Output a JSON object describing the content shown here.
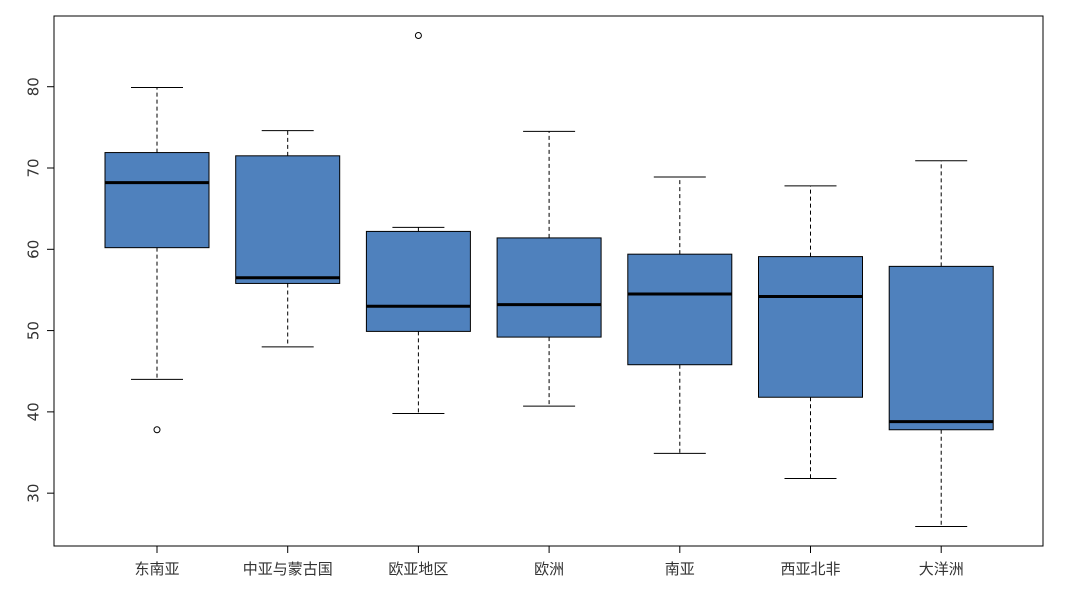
{
  "chart_data": {
    "type": "boxplot",
    "title": "",
    "xlabel": "",
    "ylabel": "",
    "ylim": [
      23.5,
      88.7
    ],
    "yticks": [
      30,
      40,
      50,
      60,
      70,
      80
    ],
    "grid": false,
    "legend": "none",
    "box_color": "#4f81bd",
    "line_color": "#000000",
    "categories": [
      "东南亚",
      "中亚与蒙古国",
      "欧亚地区",
      "欧洲",
      "南亚",
      "西亚北非",
      "大洋洲"
    ],
    "boxes": [
      {
        "whisker_low": 44.0,
        "q1": 60.2,
        "median": 68.2,
        "q3": 71.9,
        "whisker_high": 79.9,
        "outliers": [
          37.8
        ]
      },
      {
        "whisker_low": 48.0,
        "q1": 55.8,
        "median": 56.5,
        "q3": 71.5,
        "whisker_high": 74.6,
        "outliers": []
      },
      {
        "whisker_low": 39.8,
        "q1": 49.9,
        "median": 53.0,
        "q3": 62.2,
        "whisker_high": 62.7,
        "outliers": [
          86.3
        ]
      },
      {
        "whisker_low": 40.7,
        "q1": 49.2,
        "median": 53.2,
        "q3": 61.4,
        "whisker_high": 74.5,
        "outliers": []
      },
      {
        "whisker_low": 34.9,
        "q1": 45.8,
        "median": 54.5,
        "q3": 59.4,
        "whisker_high": 68.9,
        "outliers": []
      },
      {
        "whisker_low": 31.8,
        "q1": 41.8,
        "median": 54.2,
        "q3": 59.1,
        "whisker_high": 67.8,
        "outliers": []
      },
      {
        "whisker_low": 25.9,
        "q1": 37.8,
        "median": 38.8,
        "q3": 57.9,
        "whisker_high": 70.9,
        "outliers": []
      }
    ]
  }
}
